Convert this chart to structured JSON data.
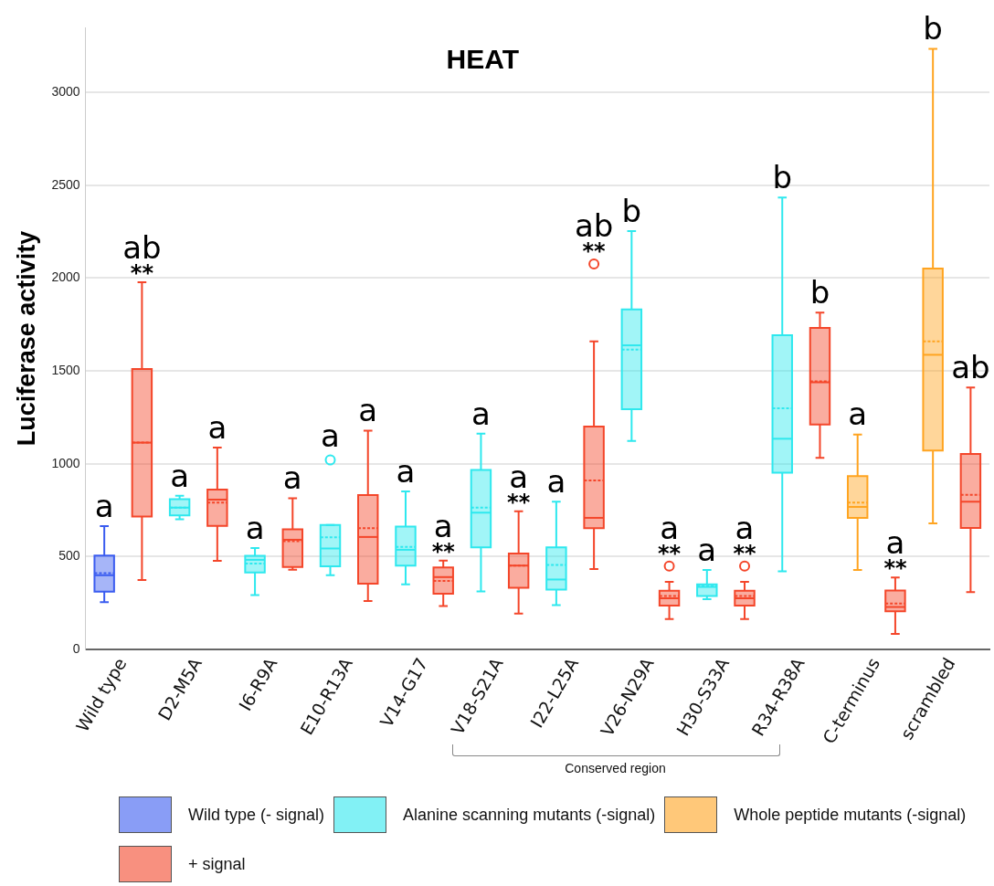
{
  "chart_data": {
    "type": "box",
    "title": "HEAT",
    "ylabel": "Luciferase activity",
    "categories": [
      "Wild type",
      "D2-M5A",
      "I6-R9A",
      "E10-R13A",
      "V14-G17",
      "V18-S21A",
      "I22-L25A",
      "V26-N29A",
      "H30-S33A",
      "R34-R38A",
      "C-terminus",
      "scrambled"
    ],
    "ylim": [
      0,
      3350
    ],
    "yticks": [
      0,
      500,
      1000,
      1500,
      2000,
      2500,
      3000
    ],
    "grid": "y",
    "legend": "bottom",
    "series": [
      {
        "name": "Wild type (- signal)",
        "color": "#3a5cf0",
        "boxes": [
          {
            "low": 255,
            "q1": 311,
            "median": 400,
            "q3": 506,
            "high": 664,
            "mean": 411
          },
          null,
          null,
          null,
          null,
          null,
          null,
          null,
          null,
          null,
          null,
          null
        ]
      },
      {
        "name": "Alanine scanning mutants (-signal)",
        "color": "#2ee8ee",
        "boxes": [
          null,
          {
            "low": 701,
            "q1": 722,
            "median": 764,
            "q3": 809,
            "high": 828,
            "mean": 764
          },
          {
            "low": 293,
            "q1": 415,
            "median": 483,
            "q3": 504,
            "high": 546,
            "mean": 463
          },
          {
            "low": 400,
            "q1": 448,
            "median": 544,
            "q3": 670,
            "high": 670,
            "mean": 604,
            "outliers": [
              1021
            ]
          },
          {
            "low": 351,
            "q1": 452,
            "median": 537,
            "q3": 662,
            "high": 851,
            "mean": 552
          },
          {
            "low": 313,
            "q1": 550,
            "median": 737,
            "q3": 967,
            "high": 1162,
            "mean": 764
          },
          {
            "low": 239,
            "q1": 323,
            "median": 377,
            "q3": 550,
            "high": 796,
            "mean": 456
          },
          {
            "low": 1123,
            "q1": 1294,
            "median": 1638,
            "q3": 1832,
            "high": 2253,
            "mean": 1615
          },
          {
            "low": 271,
            "q1": 288,
            "median": 337,
            "q3": 351,
            "high": 428,
            "mean": 342
          },
          {
            "low": 421,
            "q1": 952,
            "median": 1135,
            "q3": 1692,
            "high": 2434,
            "mean": 1299
          },
          null,
          null
        ]
      },
      {
        "name": "Whole peptide mutants (-signal)",
        "color": "#ffa420",
        "boxes": [
          null,
          null,
          null,
          null,
          null,
          null,
          null,
          null,
          null,
          null,
          {
            "low": 428,
            "q1": 709,
            "median": 768,
            "q3": 934,
            "high": 1158,
            "mean": 791
          },
          {
            "low": 679,
            "q1": 1072,
            "median": 1587,
            "q3": 2052,
            "high": 3234,
            "mean": 1659
          }
        ]
      },
      {
        "name": "+ signal",
        "color": "#f4462a",
        "boxes": [
          {
            "low": 374,
            "q1": 716,
            "median": 1114,
            "q3": 1511,
            "high": 1978,
            "mean": 1114
          },
          {
            "low": 477,
            "q1": 666,
            "median": 807,
            "q3": 861,
            "high": 1087,
            "mean": 791
          },
          {
            "low": 430,
            "q1": 444,
            "median": 591,
            "q3": 647,
            "high": 815,
            "mean": 583
          },
          {
            "low": 261,
            "q1": 355,
            "median": 606,
            "q3": 832,
            "high": 1179,
            "mean": 654
          },
          {
            "low": 234,
            "q1": 301,
            "median": 390,
            "q3": 442,
            "high": 479,
            "mean": 369
          },
          {
            "low": 194,
            "q1": 332,
            "median": 452,
            "q3": 517,
            "high": 744,
            "mean": 452
          },
          {
            "low": 433,
            "q1": 653,
            "median": 709,
            "q3": 1200,
            "high": 1659,
            "mean": 910,
            "outliers": [
              2076
            ]
          },
          {
            "low": 164,
            "q1": 236,
            "median": 276,
            "q3": 316,
            "high": 365,
            "mean": 288,
            "outliers": [
              449
            ]
          },
          {
            "low": 164,
            "q1": 236,
            "median": 276,
            "q3": 316,
            "high": 365,
            "mean": 288,
            "outliers": [
              449
            ]
          },
          {
            "low": 1032,
            "q1": 1212,
            "median": 1439,
            "q3": 1732,
            "high": 1814,
            "mean": 1444
          },
          {
            "low": 84,
            "q1": 206,
            "median": 229,
            "q3": 318,
            "high": 388,
            "mean": 248
          },
          {
            "low": 309,
            "q1": 655,
            "median": 796,
            "q3": 1053,
            "high": 1411,
            "mean": 833
          }
        ]
      }
    ],
    "annotations": [
      "a",
      "**",
      "ab",
      "a",
      "a",
      "a",
      "a",
      "a",
      "a",
      "a",
      "**",
      "a",
      "a",
      "**",
      "a",
      "a",
      "**",
      "ab",
      "b",
      "**",
      "a",
      "a",
      "**",
      "a",
      "b",
      "b",
      "a",
      "**",
      "a",
      "b",
      "ab",
      "Conserved region"
    ]
  }
}
